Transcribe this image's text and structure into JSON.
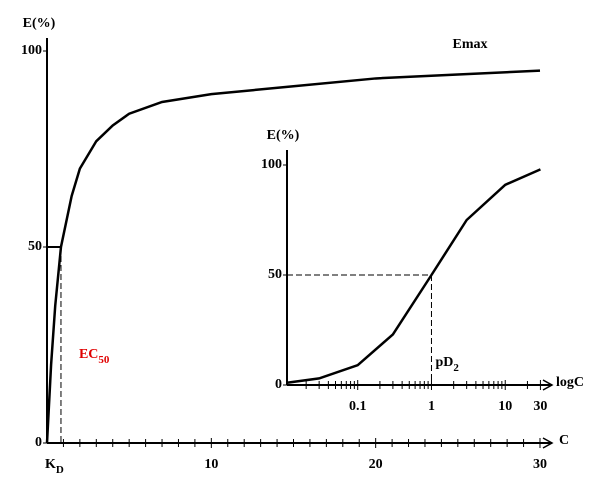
{
  "chart_data": [
    {
      "type": "line",
      "ylabel": "E(%)",
      "xlabel": "C",
      "color": "#000000",
      "x": [
        0,
        0.25,
        0.5,
        0.85,
        1.5,
        2,
        3,
        4,
        5,
        7,
        10,
        15,
        20,
        25,
        30
      ],
      "values": [
        0,
        20,
        35,
        50,
        63,
        70,
        77,
        81,
        84,
        87,
        89,
        91,
        93,
        94,
        95
      ],
      "xlim": [
        0,
        30
      ],
      "ylim": [
        0,
        100
      ],
      "xticks": [
        10,
        20,
        30
      ],
      "yticks": [
        0,
        50,
        100
      ],
      "x_minor_ticks": [
        1,
        2,
        3,
        4,
        5,
        6,
        7,
        8,
        9,
        11,
        12,
        13,
        14,
        15,
        16,
        17,
        18,
        19,
        21,
        22,
        23,
        24,
        25,
        26,
        27,
        28,
        29
      ],
      "curve_label": "Emax",
      "ref_x": 0.85,
      "ref_y": 50,
      "ref_x_label": "K",
      "ref_x_label_sub": "D",
      "ref_note": "EC",
      "ref_note_sub": "50",
      "ref_note_color": "#e00000"
    },
    {
      "type": "line",
      "ylabel": "E(%)",
      "xlabel": "logC",
      "color": "#000000",
      "log_x": true,
      "x": [
        0.011,
        0.03,
        0.1,
        0.3,
        1,
        3,
        10,
        30
      ],
      "values": [
        1,
        3,
        9,
        23,
        50,
        75,
        91,
        98
      ],
      "xlim": [
        0.011,
        38
      ],
      "ylim": [
        0,
        100
      ],
      "xticks": [
        0.1,
        1,
        10,
        30
      ],
      "yticks": [
        0,
        50,
        100
      ],
      "x_minor_ticks": [
        0.02,
        0.03,
        0.04,
        0.05,
        0.06,
        0.07,
        0.08,
        0.09,
        0.2,
        0.3,
        0.4,
        0.5,
        0.6,
        0.7,
        0.8,
        0.9,
        2,
        3,
        4,
        5,
        6,
        7,
        8,
        9,
        20
      ],
      "ref_x": 1,
      "ref_y": 50,
      "ref_note": "pD",
      "ref_note_sub": "2"
    }
  ]
}
